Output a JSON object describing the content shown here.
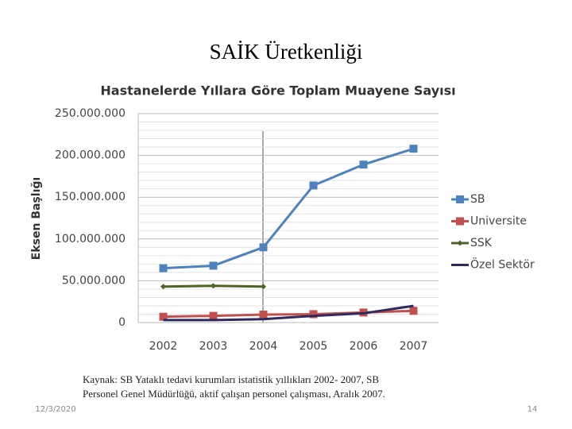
{
  "slide": {
    "title": "SAİK Üretkenliği",
    "source": [
      "Kaynak: SB Yataklı tedavi kurumları istatistik yıllıkları 2002- 2007, SB",
      "Personel Genel  Müdürlüğü, aktif çalışan personel çalışması, Aralık 2007."
    ],
    "date": "12/3/2020",
    "page": "14"
  },
  "chart_data": {
    "type": "line",
    "title": "Hastanelerde Yıllara Göre Toplam Muayene Sayısı",
    "y_label": "Eksen Başlığı",
    "categories": [
      "2002",
      "2003",
      "2004",
      "2005",
      "2006",
      "2007"
    ],
    "series": [
      {
        "name": "SB",
        "color": "#4f81bd",
        "marker": "square",
        "values": [
          65000000,
          68000000,
          90000000,
          164000000,
          189000000,
          208000000
        ]
      },
      {
        "name": "Universite",
        "color": "#c0504d",
        "marker": "square",
        "values": [
          7000000,
          8000000,
          9500000,
          10000000,
          12000000,
          14000000
        ]
      },
      {
        "name": "SSK",
        "color": "#4f6228",
        "marker": "diamond",
        "values": [
          43000000,
          44000000,
          43000000,
          null,
          null,
          null
        ]
      },
      {
        "name": "Özel Sektör",
        "color": "#2e2a5e",
        "marker": "none",
        "values": [
          3000000,
          3000000,
          4000000,
          8000000,
          11000000,
          20000000
        ]
      }
    ],
    "ylim": [
      0,
      250000000
    ],
    "yticks": [
      0,
      {
        "value": 50000000,
        "label": "50.000.000"
      },
      {
        "value": 100000000,
        "label": "100.000.000"
      },
      {
        "value": 150000000,
        "label": "150.000.000"
      },
      {
        "value": 200000000,
        "label": "200.000.000"
      },
      {
        "value": 250000000,
        "label": "250.000.000"
      }
    ],
    "grid": true,
    "legend": "right"
  }
}
